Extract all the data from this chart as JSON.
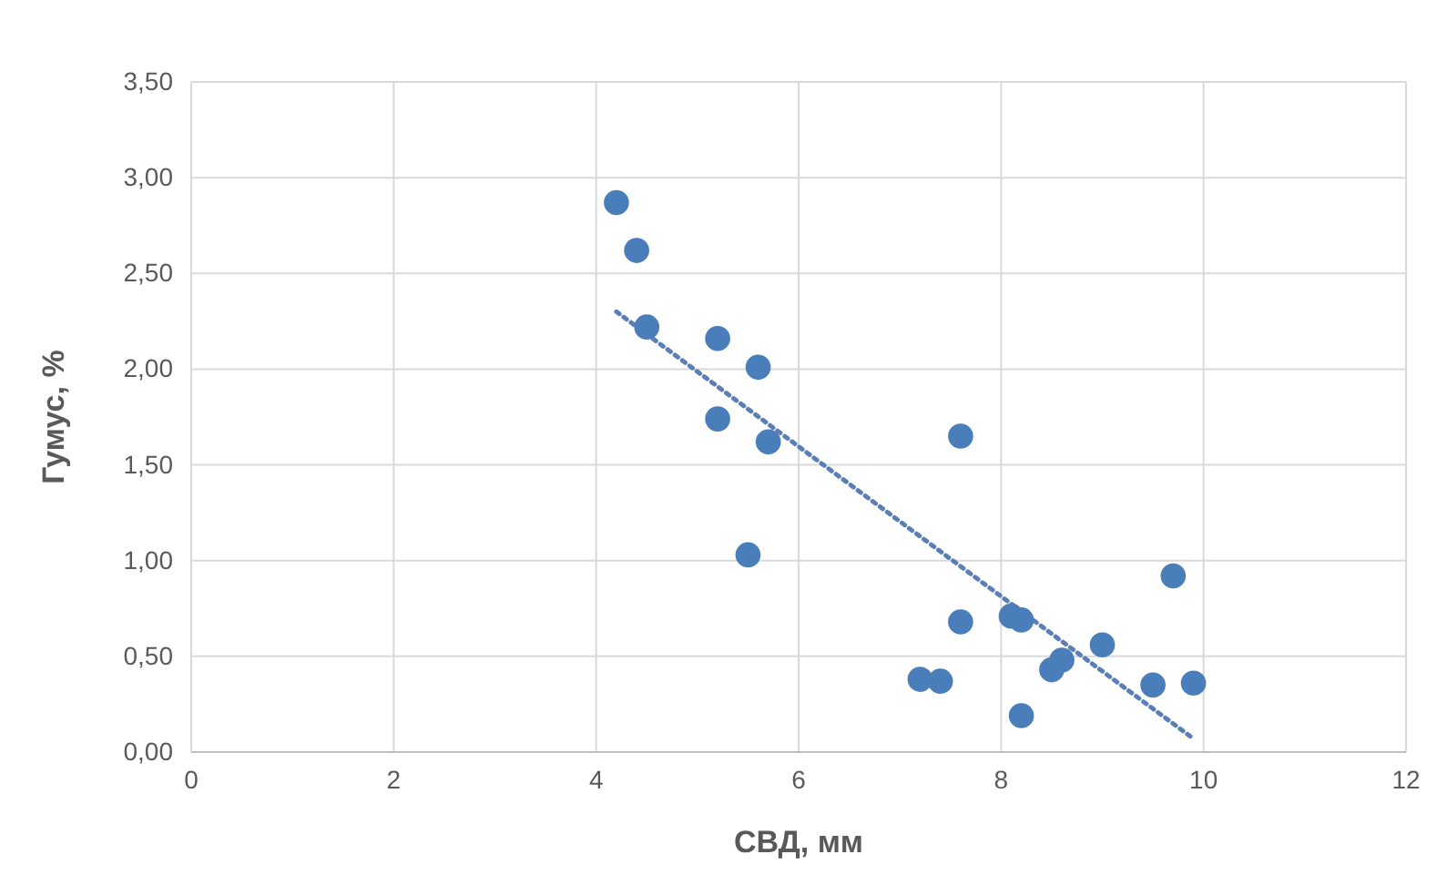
{
  "chart_data": {
    "type": "scatter",
    "xlabel": "СВД, мм",
    "ylabel": "Гумус, %",
    "xlim": [
      0,
      12
    ],
    "xticks": [
      0,
      2,
      4,
      6,
      8,
      10,
      12
    ],
    "ylim": [
      0,
      3.5
    ],
    "yticks": [
      {
        "value": 0,
        "label": "0,00"
      },
      {
        "value": 0.5,
        "label": "0,50"
      },
      {
        "value": 1,
        "label": "1,00"
      },
      {
        "value": 1.5,
        "label": "1,50"
      },
      {
        "value": 2,
        "label": "2,00"
      },
      {
        "value": 2.5,
        "label": "2,50"
      },
      {
        "value": 3,
        "label": "3,00"
      },
      {
        "value": 3.5,
        "label": "3,50"
      }
    ],
    "grid": true,
    "series": [
      {
        "type": "scatter",
        "marker": "circle",
        "color": "#4a7ebb",
        "x": [
          4.2,
          4.4,
          4.5,
          5.2,
          5.6,
          5.2,
          5.7,
          5.5,
          7.6,
          7.6,
          7.2,
          7.4,
          8.1,
          8.2,
          9.0,
          9.7,
          8.5,
          8.6,
          8.2,
          9.5,
          9.9
        ],
        "values": [
          2.87,
          2.62,
          2.22,
          2.16,
          2.01,
          1.74,
          1.62,
          1.03,
          1.65,
          0.68,
          0.38,
          0.37,
          0.71,
          0.69,
          0.56,
          0.92,
          0.43,
          0.48,
          0.19,
          0.35,
          0.36
        ]
      },
      {
        "type": "line",
        "color": "#5b7fb5",
        "line_style": "dotted",
        "marker": "none",
        "x": [
          4.2,
          9.9
        ],
        "values": [
          2.3,
          0.07
        ]
      }
    ]
  }
}
